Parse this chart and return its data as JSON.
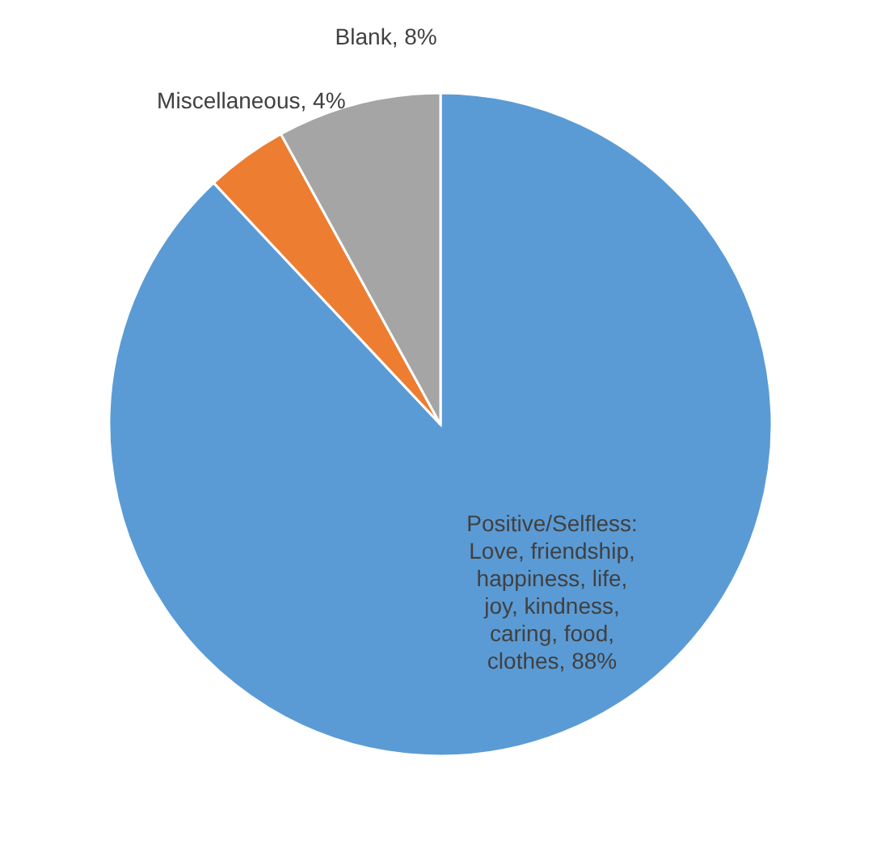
{
  "chart_data": {
    "type": "pie",
    "categories": [
      "Positive/Selfless: Love, friendship, happiness, life, joy, kindness, caring, food, clothes",
      "Miscellaneous",
      "Blank"
    ],
    "values": [
      88,
      4,
      8
    ],
    "value_labels": [
      "88%",
      "4%",
      "8%"
    ],
    "colors": [
      "#5b9bd5",
      "#ed7d31",
      "#a5a5a5"
    ]
  }
}
